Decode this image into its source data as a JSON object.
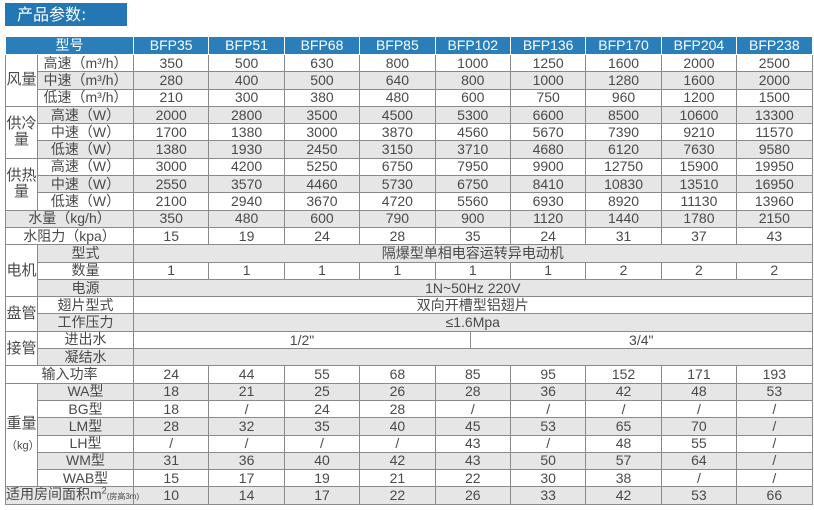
{
  "title": "产品参数:",
  "header": {
    "label": "型号",
    "models": [
      "BFP35",
      "BFP51",
      "BFP68",
      "BFP85",
      "BFP102",
      "BFP136",
      "BFP170",
      "BFP204",
      "BFP238"
    ]
  },
  "colors": {
    "title_bg": "#2277b4",
    "header_bg": "#2a7fba",
    "row_shade": "#e6e6e6"
  },
  "groups": [
    {
      "label": "风量",
      "rows": [
        {
          "label": "高速（m³/h）",
          "values": [
            "350",
            "500",
            "630",
            "800",
            "1000",
            "1250",
            "1600",
            "2000",
            "2500"
          ]
        },
        {
          "label": "中速（m³/h）",
          "values": [
            "280",
            "400",
            "500",
            "640",
            "800",
            "1000",
            "1280",
            "1600",
            "2000"
          ]
        },
        {
          "label": "低速（m³/h）",
          "values": [
            "210",
            "300",
            "380",
            "480",
            "600",
            "750",
            "960",
            "1200",
            "1500"
          ]
        }
      ]
    },
    {
      "label": "供冷量",
      "rows": [
        {
          "label": "高速（W）",
          "values": [
            "2000",
            "2800",
            "3500",
            "4500",
            "5300",
            "6600",
            "8500",
            "10600",
            "13300"
          ]
        },
        {
          "label": "中速（W）",
          "values": [
            "1700",
            "1380",
            "3000",
            "3870",
            "4560",
            "5670",
            "7390",
            "9210",
            "11570"
          ]
        },
        {
          "label": "低速（W）",
          "values": [
            "1380",
            "1930",
            "2450",
            "3150",
            "3710",
            "4680",
            "6120",
            "7630",
            "9580"
          ]
        }
      ]
    },
    {
      "label": "供热量",
      "rows": [
        {
          "label": "高速（W）",
          "values": [
            "3000",
            "4200",
            "5250",
            "6750",
            "7950",
            "9900",
            "12750",
            "15900",
            "19950"
          ]
        },
        {
          "label": "中速（W）",
          "values": [
            "2550",
            "3570",
            "4460",
            "5730",
            "6750",
            "8410",
            "10830",
            "13510",
            "16950"
          ]
        },
        {
          "label": "低速（W）",
          "values": [
            "2100",
            "2940",
            "3670",
            "4720",
            "5560",
            "6930",
            "8920",
            "11130",
            "13960"
          ]
        }
      ]
    },
    {
      "label": "",
      "rows": [
        {
          "label": "水量（kg/h）",
          "values": [
            "350",
            "480",
            "600",
            "790",
            "900",
            "1120",
            "1440",
            "1780",
            "2150"
          ]
        },
        {
          "label": "水阻力（kpa）",
          "values": [
            "15",
            "19",
            "24",
            "28",
            "35",
            "24",
            "31",
            "37",
            "43"
          ]
        }
      ]
    },
    {
      "label": "电机",
      "rows": [
        {
          "label": "型式",
          "span": "隔爆型单相电容运转异电动机"
        },
        {
          "label": "数量",
          "values": [
            "1",
            "1",
            "1",
            "1",
            "1",
            "1",
            "2",
            "2",
            "2"
          ]
        },
        {
          "label": "电源",
          "span": "1N~50Hz  220V"
        }
      ]
    },
    {
      "label": "盘管",
      "rows": [
        {
          "label": "翅片型式",
          "span": "双向开槽型铝翅片"
        },
        {
          "label": "工作压力",
          "span": "≤1.6Mpa"
        }
      ]
    },
    {
      "label": "接管",
      "rows": [
        {
          "label": "进出水",
          "split": [
            "1/2\"",
            "3/4\""
          ]
        },
        {
          "label": "凝结水",
          "span": ""
        }
      ]
    },
    {
      "label": "",
      "rows": [
        {
          "label": "输入功率",
          "values": [
            "24",
            "44",
            "55",
            "68",
            "85",
            "95",
            "152",
            "171",
            "193"
          ]
        }
      ]
    },
    {
      "label": "重量",
      "unit": "（kg）",
      "rows": [
        {
          "label": "WA型",
          "values": [
            "18",
            "21",
            "25",
            "26",
            "28",
            "36",
            "42",
            "48",
            "53"
          ]
        },
        {
          "label": "BG型",
          "values": [
            "18",
            "/",
            "24",
            "28",
            "/",
            "/",
            "/",
            "/",
            "/"
          ]
        },
        {
          "label": "LM型",
          "values": [
            "28",
            "32",
            "35",
            "40",
            "45",
            "53",
            "65",
            "70",
            "/"
          ]
        },
        {
          "label": "LH型",
          "values": [
            "/",
            "/",
            "/",
            "/",
            "43",
            "/",
            "48",
            "55",
            "/"
          ]
        },
        {
          "label": "WM型",
          "values": [
            "31",
            "36",
            "40",
            "42",
            "43",
            "50",
            "57",
            "64",
            "/"
          ]
        },
        {
          "label": "WAB型",
          "values": [
            "15",
            "17",
            "19",
            "21",
            "22",
            "30",
            "38",
            "/",
            "/"
          ]
        }
      ]
    },
    {
      "label": "",
      "rows": [
        {
          "label": "适用房间面积m",
          "label_sup": "2",
          "label_note": "(房高3m)",
          "values": [
            "10",
            "14",
            "17",
            "22",
            "26",
            "33",
            "42",
            "53",
            "66"
          ]
        }
      ]
    }
  ]
}
